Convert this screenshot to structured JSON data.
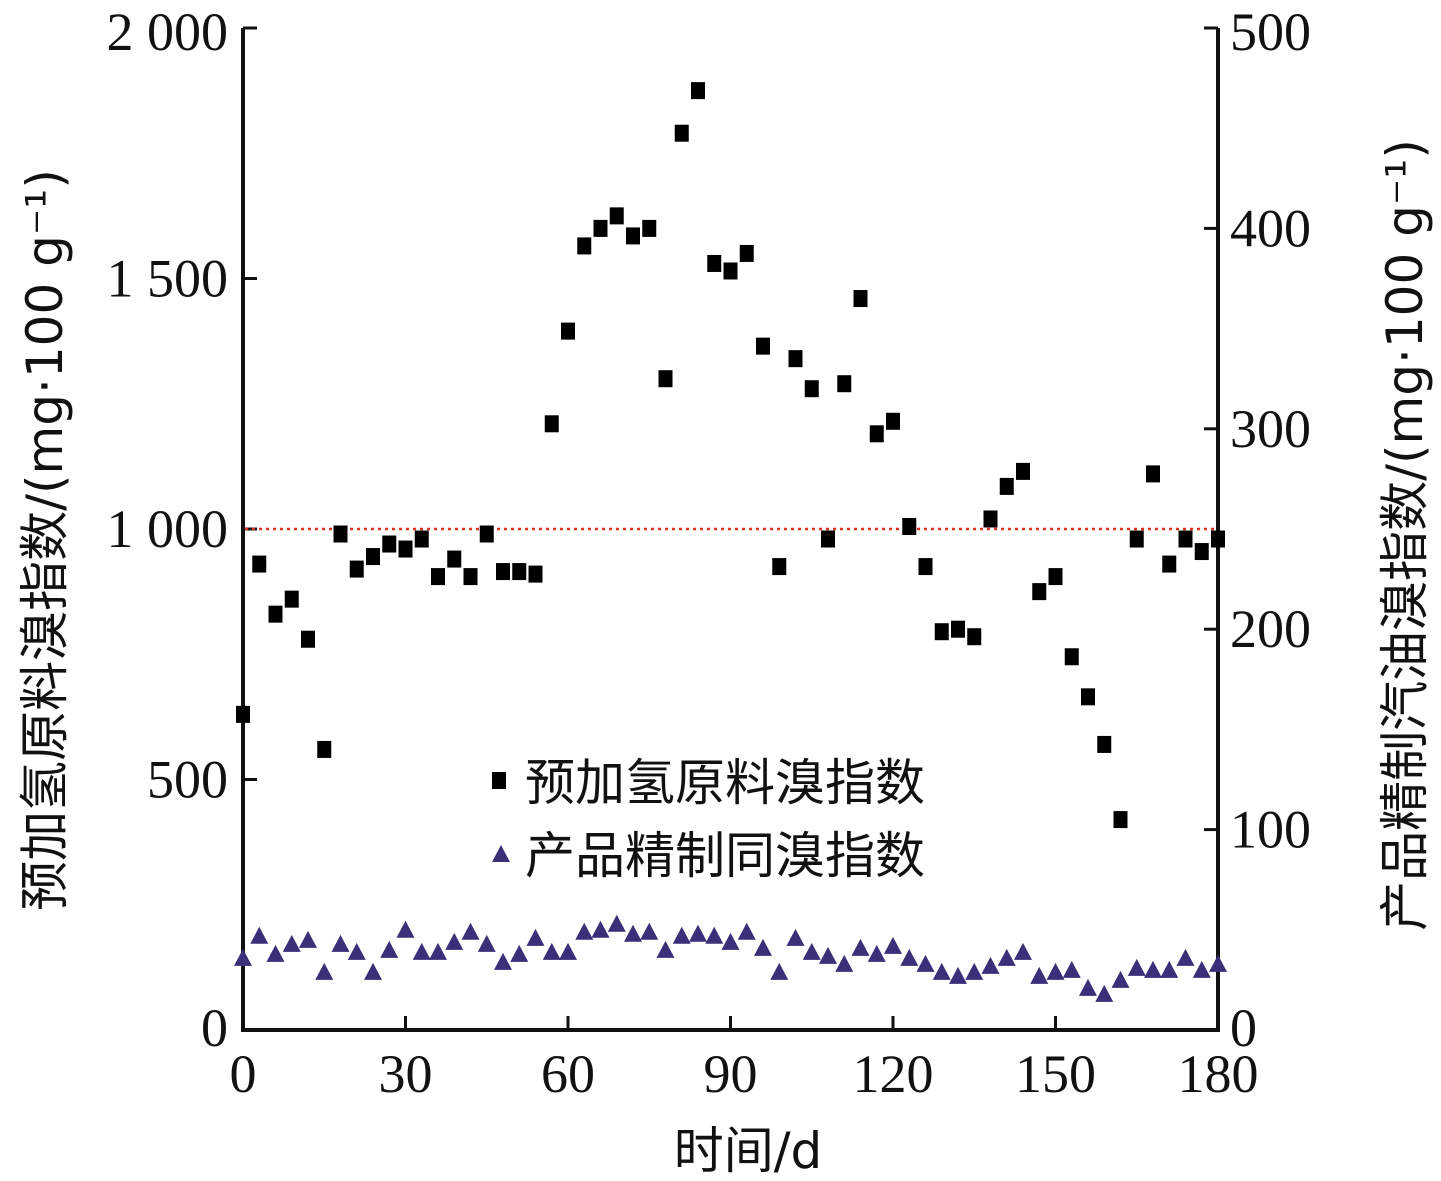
{
  "chart_data": {
    "type": "scatter",
    "xlabel": "时间/d",
    "ylabel_left": "预加氢原料溴指数/(mg·100 g⁻¹)",
    "ylabel_right": "产品精制汽油溴指数/(mg·100 g⁻¹)",
    "x_ticks": [
      "0",
      "30",
      "60",
      "90",
      "120",
      "150",
      "180"
    ],
    "y_left_ticks": [
      "0",
      "500",
      "1 000",
      "1 500",
      "2 000"
    ],
    "y_right_ticks": [
      "0",
      "100",
      "200",
      "300",
      "400",
      "500"
    ],
    "xlim": [
      0,
      180
    ],
    "ylim_left": [
      0,
      2000
    ],
    "ylim_right": [
      0,
      500
    ],
    "reference_line": {
      "axis": "left",
      "y": 1000,
      "color": "#e03020",
      "style": "dotted"
    },
    "grid": false,
    "legend_position": "lower-center",
    "series": [
      {
        "name": "预加氢原料溴指数",
        "axis": "left",
        "marker": "square",
        "color": "#000000",
        "x": [
          0,
          3,
          6,
          9,
          12,
          15,
          18,
          21,
          24,
          27,
          30,
          33,
          36,
          39,
          42,
          45,
          48,
          51,
          54,
          57,
          60,
          63,
          66,
          69,
          72,
          75,
          78,
          81,
          84,
          87,
          90,
          93,
          96,
          99,
          102,
          105,
          108,
          111,
          114,
          117,
          120,
          123,
          126,
          129,
          132,
          135,
          138,
          141,
          144,
          147,
          150,
          153,
          156,
          159,
          162,
          165,
          168,
          171,
          174,
          177,
          180
        ],
        "y": [
          630,
          930,
          830,
          860,
          780,
          560,
          990,
          920,
          945,
          970,
          960,
          980,
          905,
          940,
          905,
          990,
          915,
          915,
          910,
          1210,
          1395,
          1565,
          1600,
          1625,
          1585,
          1600,
          1300,
          1790,
          1875,
          1530,
          1515,
          1550,
          1365,
          925,
          1340,
          1280,
          980,
          1290,
          1460,
          1190,
          1215,
          1005,
          925,
          795,
          800,
          785,
          1020,
          1085,
          1115,
          875,
          905,
          745,
          665,
          570,
          420,
          980,
          1110,
          930,
          980,
          955,
          980
        ]
      },
      {
        "name": "产品精制同溴指数",
        "axis": "right",
        "marker": "triangle",
        "color": "#3b2f7a",
        "x": [
          0,
          3,
          6,
          9,
          12,
          15,
          18,
          21,
          24,
          27,
          30,
          33,
          36,
          39,
          42,
          45,
          48,
          51,
          54,
          57,
          60,
          63,
          66,
          69,
          72,
          75,
          78,
          81,
          84,
          87,
          90,
          93,
          96,
          99,
          102,
          105,
          108,
          111,
          114,
          117,
          120,
          123,
          126,
          129,
          132,
          135,
          138,
          141,
          144,
          147,
          150,
          153,
          156,
          159,
          162,
          165,
          168,
          171,
          174,
          177,
          180
        ],
        "y": [
          36,
          47,
          38,
          43,
          45,
          29,
          43,
          39,
          29,
          40,
          50,
          39,
          39,
          44,
          49,
          43,
          34,
          38,
          46,
          39,
          39,
          49,
          50,
          53,
          48,
          49,
          40,
          47,
          48,
          47,
          44,
          49,
          41,
          29,
          46,
          39,
          37,
          33,
          41,
          38,
          42,
          36,
          33,
          29,
          27,
          29,
          32,
          36,
          39,
          27,
          29,
          30,
          21,
          18,
          25,
          31,
          30,
          30,
          36,
          30,
          33
        ]
      }
    ]
  }
}
